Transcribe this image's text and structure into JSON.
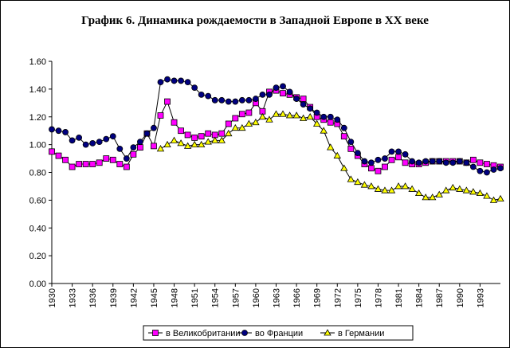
{
  "chart_data": {
    "type": "line",
    "title": "График 6. Динамика рождаемости в Западной Европе в XX веке",
    "x": [
      1930,
      1931,
      1932,
      1933,
      1934,
      1935,
      1936,
      1937,
      1938,
      1939,
      1940,
      1941,
      1942,
      1943,
      1944,
      1945,
      1946,
      1947,
      1948,
      1949,
      1950,
      1951,
      1952,
      1953,
      1954,
      1955,
      1956,
      1957,
      1958,
      1959,
      1960,
      1961,
      1962,
      1963,
      1964,
      1965,
      1966,
      1967,
      1968,
      1969,
      1970,
      1971,
      1972,
      1973,
      1974,
      1975,
      1976,
      1977,
      1978,
      1979,
      1980,
      1981,
      1982,
      1983,
      1984,
      1985,
      1986,
      1987,
      1988,
      1989,
      1990,
      1991,
      1992,
      1993,
      1994,
      1995,
      1996
    ],
    "xlim": [
      1930,
      1996
    ],
    "xticks": [
      1930,
      1933,
      1936,
      1939,
      1942,
      1945,
      1948,
      1951,
      1954,
      1957,
      1960,
      1963,
      1966,
      1969,
      1972,
      1975,
      1978,
      1981,
      1984,
      1987,
      1990,
      1993
    ],
    "ylim": [
      0,
      1.6
    ],
    "yticks": [
      {
        "value": 0,
        "label": "0.00"
      },
      {
        "value": 0.2,
        "label": "0.20"
      },
      {
        "value": 0.4,
        "label": "0.40"
      },
      {
        "value": 0.6,
        "label": "0.60"
      },
      {
        "value": 0.8,
        "label": "0.80"
      },
      {
        "value": 1.0,
        "label": "1.00"
      },
      {
        "value": 1.2,
        "label": "1.20"
      },
      {
        "value": 1.4,
        "label": "1.40"
      },
      {
        "value": 1.6,
        "label": "1.60"
      }
    ],
    "legend": "bottom",
    "series": [
      {
        "name": "в Великобритании",
        "color": "#ff00ff",
        "marker": "square",
        "values": [
          0.95,
          0.92,
          0.89,
          0.84,
          0.86,
          0.86,
          0.86,
          0.87,
          0.9,
          0.89,
          0.86,
          0.84,
          0.93,
          0.98,
          1.08,
          0.99,
          1.21,
          1.31,
          1.16,
          1.1,
          1.07,
          1.05,
          1.06,
          1.08,
          1.07,
          1.08,
          1.15,
          1.19,
          1.22,
          1.23,
          1.3,
          1.24,
          1.38,
          1.39,
          1.37,
          1.36,
          1.34,
          1.33,
          1.27,
          1.2,
          1.18,
          1.16,
          1.15,
          1.06,
          0.97,
          0.92,
          0.86,
          0.83,
          0.81,
          0.84,
          0.89,
          0.91,
          0.87,
          0.86,
          0.86,
          0.87,
          0.88,
          0.88,
          0.88,
          0.88,
          0.88,
          0.87,
          0.89,
          0.87,
          0.86,
          0.85,
          0.84
        ]
      },
      {
        "name": "во Франции",
        "color": "#000080",
        "marker": "circle",
        "values": [
          1.11,
          1.1,
          1.09,
          1.03,
          1.05,
          1.0,
          1.01,
          1.02,
          1.04,
          1.06,
          0.97,
          0.9,
          0.98,
          1.02,
          1.08,
          1.12,
          1.45,
          1.47,
          1.46,
          1.46,
          1.45,
          1.41,
          1.36,
          1.35,
          1.32,
          1.32,
          1.31,
          1.31,
          1.32,
          1.32,
          1.33,
          1.36,
          1.36,
          1.41,
          1.42,
          1.38,
          1.33,
          1.29,
          1.26,
          1.23,
          1.2,
          1.2,
          1.18,
          1.12,
          1.02,
          0.94,
          0.88,
          0.87,
          0.89,
          0.9,
          0.95,
          0.95,
          0.93,
          0.88,
          0.87,
          0.88,
          0.88,
          0.88,
          0.87,
          0.87,
          0.88,
          0.87,
          0.84,
          0.81,
          0.8,
          0.82,
          0.83
        ]
      },
      {
        "name": "в Германии",
        "color": "#ffff00",
        "marker": "triangle",
        "values": [
          null,
          null,
          null,
          null,
          null,
          null,
          null,
          null,
          null,
          null,
          null,
          null,
          null,
          null,
          null,
          null,
          0.97,
          1.0,
          1.03,
          1.01,
          0.99,
          1.0,
          1.0,
          1.02,
          1.03,
          1.03,
          1.08,
          1.12,
          1.12,
          1.15,
          1.16,
          1.2,
          1.18,
          1.22,
          1.22,
          1.21,
          1.21,
          1.19,
          1.2,
          1.15,
          1.1,
          0.98,
          0.92,
          0.83,
          0.75,
          0.73,
          0.71,
          0.7,
          0.68,
          0.67,
          0.67,
          0.7,
          0.7,
          0.68,
          0.65,
          0.62,
          0.62,
          0.64,
          0.67,
          0.69,
          0.68,
          0.67,
          0.66,
          0.65,
          0.63,
          0.6,
          0.61
        ]
      }
    ]
  }
}
